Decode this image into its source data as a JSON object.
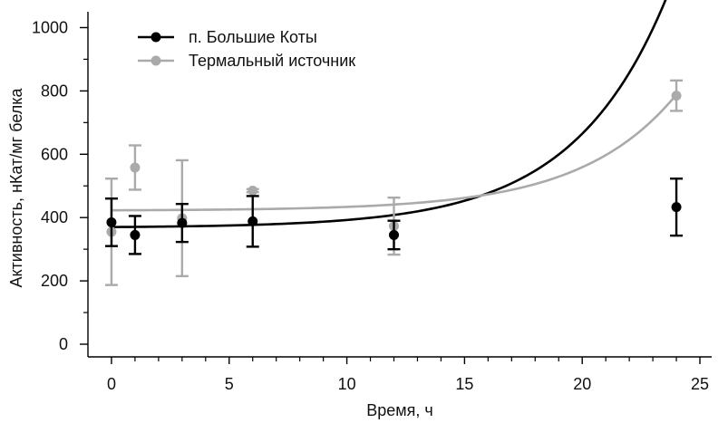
{
  "chart_data": {
    "type": "scatter",
    "title": "",
    "xlabel": "Время, ч",
    "ylabel": "Активность, нКат/мг белка",
    "xlim": [
      -1,
      25.5
    ],
    "ylim": [
      -40,
      1050
    ],
    "xticks": [
      0,
      5,
      10,
      15,
      20,
      25
    ],
    "xtick_labels": [
      "0",
      "5",
      "10",
      "15",
      "20",
      "25"
    ],
    "xminor_ticks": [
      1,
      2,
      3,
      4,
      6,
      7,
      8,
      9,
      11,
      12,
      13,
      14,
      16,
      17,
      18,
      19,
      21,
      22,
      23,
      24
    ],
    "yticks": [
      0,
      200,
      400,
      600,
      800,
      1000
    ],
    "ytick_labels": [
      "0",
      "200",
      "400",
      "600",
      "800",
      "1000"
    ],
    "yminor_ticks": [
      100,
      300,
      500,
      700,
      900
    ],
    "grid": false,
    "legend_position": "top-left",
    "series": [
      {
        "name": "п. Большие Коты",
        "color": "#000000",
        "fit": {
          "type": "exponential",
          "a": 368,
          "b": 2.0,
          "k": 0.25
        },
        "points": [
          {
            "x": 0,
            "y": 385,
            "yerr": 75
          },
          {
            "x": 1,
            "y": 345,
            "yerr": 60
          },
          {
            "x": 3,
            "y": 383,
            "yerr": 60
          },
          {
            "x": 6,
            "y": 388,
            "yerr": 80
          },
          {
            "x": 12,
            "y": 345,
            "yerr": 45
          },
          {
            "x": 24,
            "y": 433,
            "yerr": 90
          }
        ]
      },
      {
        "name": "Термальный источник",
        "color": "#aaaaaa",
        "fit": {
          "type": "exponential",
          "a": 422,
          "b": 1.0,
          "k": 0.246
        },
        "points": [
          {
            "x": 0,
            "y": 355,
            "yerr": 168
          },
          {
            "x": 1,
            "y": 558,
            "yerr": 70
          },
          {
            "x": 3,
            "y": 398,
            "yerr": 183
          },
          {
            "x": 6,
            "y": 485,
            "yerr": 5
          },
          {
            "x": 12,
            "y": 373,
            "yerr": 90
          },
          {
            "x": 24,
            "y": 785,
            "yerr": 48
          }
        ]
      }
    ]
  }
}
